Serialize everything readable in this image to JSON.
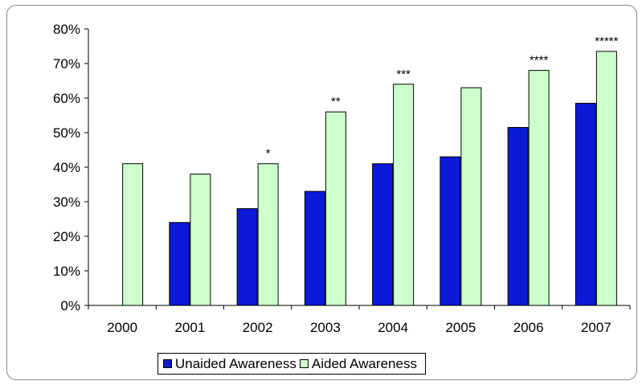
{
  "chart_data": {
    "type": "bar",
    "categories": [
      "2000",
      "2001",
      "2002",
      "2003",
      "2004",
      "2005",
      "2006",
      "2007"
    ],
    "series": [
      {
        "name": "Unaided Awareness",
        "color": "#0a1ad6",
        "values": [
          null,
          24,
          28,
          33,
          41,
          43,
          51.5,
          58.5
        ]
      },
      {
        "name": "Aided Awareness",
        "color": "#ccffcc",
        "values": [
          41,
          38,
          41,
          56,
          64,
          63,
          68,
          73.5
        ]
      }
    ],
    "annotations": [
      "",
      "",
      "*",
      "**",
      "***",
      "",
      "****",
      "*****"
    ],
    "y_ticks": [
      "0%",
      "10%",
      "20%",
      "30%",
      "40%",
      "50%",
      "60%",
      "70%",
      "80%"
    ],
    "ylim": [
      0,
      80
    ],
    "grid": false,
    "legend_position": "bottom"
  }
}
